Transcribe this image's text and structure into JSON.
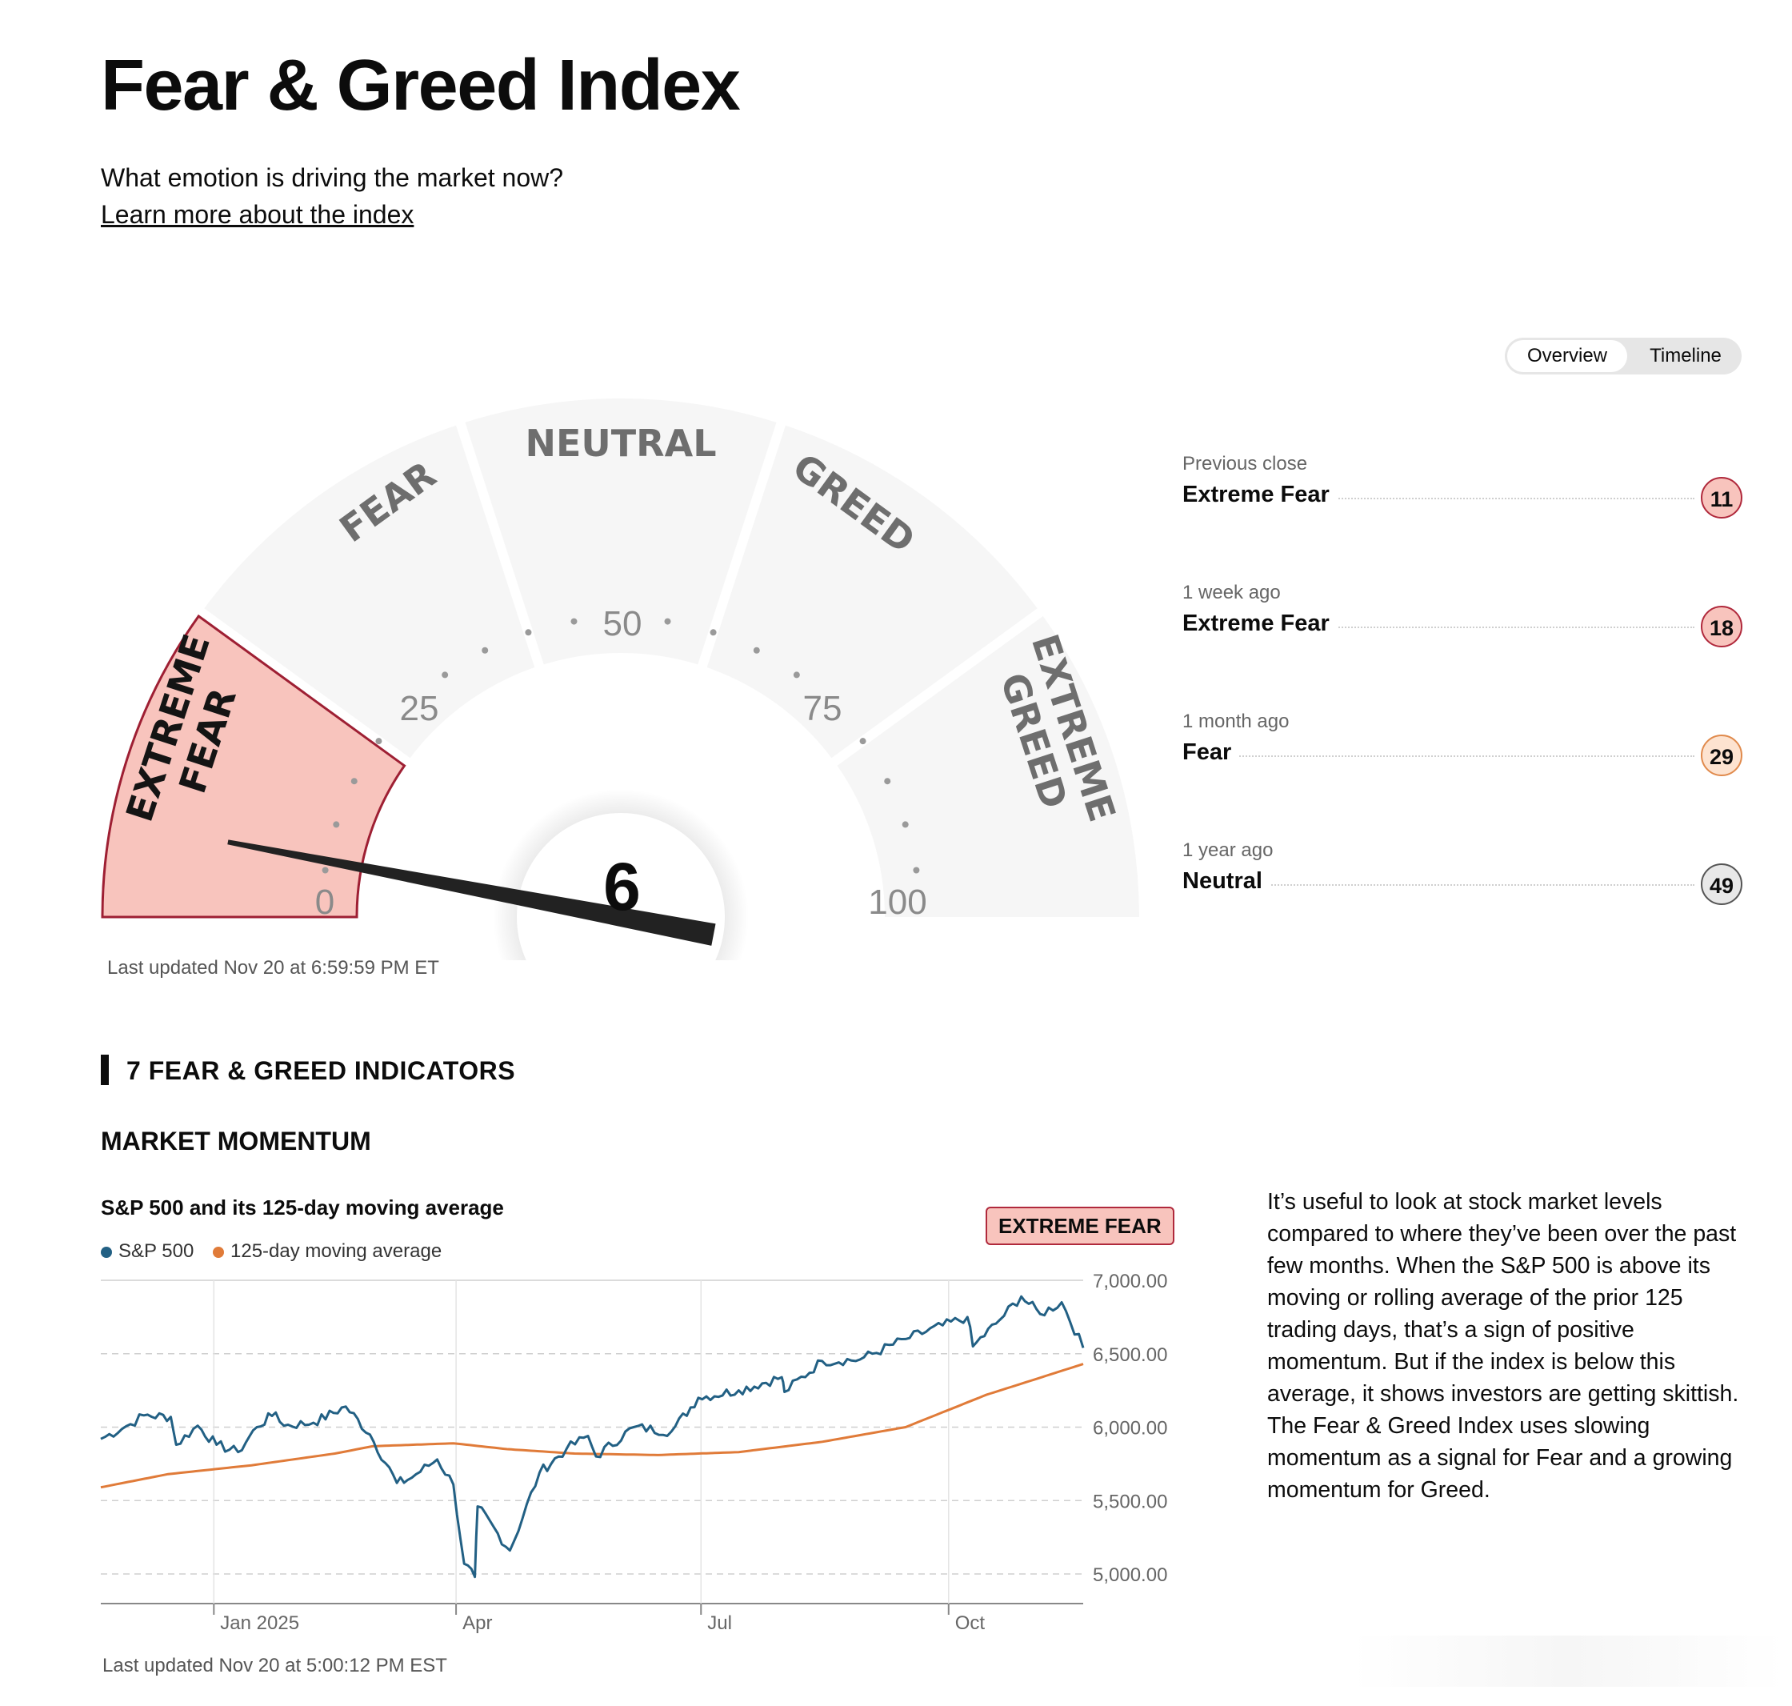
{
  "header": {
    "title": "Fear & Greed Index",
    "subtitle": "What emotion is driving the market now?",
    "learn_more": "Learn more about the index"
  },
  "tabs": {
    "overview": "Overview",
    "timeline": "Timeline",
    "active": "Overview"
  },
  "gauge": {
    "value": 6,
    "value_text": "6",
    "segments": [
      "EXTREME FEAR",
      "FEAR",
      "NEUTRAL",
      "GREED",
      "EXTREME GREED"
    ],
    "seg_extreme_fear_1": "EXTREME",
    "seg_extreme_fear_2": "FEAR",
    "seg_fear": "FEAR",
    "seg_neutral": "NEUTRAL",
    "seg_greed": "GREED",
    "seg_extreme_greed_1": "EXTREME",
    "seg_extreme_greed_2": "GREED",
    "tick_0": "0",
    "tick_25": "25",
    "tick_50": "50",
    "tick_75": "75",
    "tick_100": "100",
    "last_updated": "Last updated Nov 20 at 6:59:59 PM ET",
    "active_fill": "#f8c4bd",
    "active_stroke": "#9e1f33",
    "inactive_fill": "#f6f6f6"
  },
  "history": [
    {
      "label": "Previous close",
      "rating": "Extreme Fear",
      "value": "11",
      "bg": "#f8c4bd",
      "border": "#b0293c"
    },
    {
      "label": "1 week ago",
      "rating": "Extreme Fear",
      "value": "18",
      "bg": "#f8c4bd",
      "border": "#b0293c"
    },
    {
      "label": "1 month ago",
      "rating": "Fear",
      "value": "29",
      "bg": "#fde3d0",
      "border": "#e08a4c"
    },
    {
      "label": "1 year ago",
      "rating": "Neutral",
      "value": "49",
      "bg": "#e8e8e8",
      "border": "#555555"
    }
  ],
  "indicators": {
    "section_title": "7 FEAR & GREED INDICATORS",
    "market_momentum": {
      "title": "MARKET MOMENTUM",
      "chart_title": "S&P 500 and its 125-day moving average",
      "status": "EXTREME FEAR",
      "last_updated": "Last updated Nov 20 at 5:00:12 PM EST",
      "description": "It’s useful to look at stock market levels compared to where they’ve been over the past few months. When the S&P 500 is above its moving or rolling average of the prior 125 trading days, that’s a sign of positive momentum. But if the index is below this average, it shows investors are getting skittish. The Fear & Greed Index uses slowing momentum as a signal for Fear and a growing momentum for Greed."
    }
  },
  "chart_data": {
    "type": "line",
    "title": "S&P 500 and its 125-day moving average",
    "xlabel": "",
    "ylabel": "",
    "ylim": [
      4800,
      7000
    ],
    "y_ticks": [
      5000,
      5500,
      6000,
      6500,
      7000
    ],
    "y_tick_labels": [
      "5,000.00",
      "5,500.00",
      "6,000.00",
      "6,500.00",
      "7,000.00"
    ],
    "x_range": [
      "2024-11-20",
      "2025-11-20"
    ],
    "x_ticks": [
      "Jan 2025",
      "Apr",
      "Jul",
      "Oct"
    ],
    "grid": true,
    "legend": "top-left",
    "series": [
      {
        "name": "S&P 500",
        "color": "#226084",
        "points": [
          [
            "2024-11-20",
            5920
          ],
          [
            "2024-12-01",
            6020
          ],
          [
            "2024-12-06",
            6080
          ],
          [
            "2024-12-16",
            6070
          ],
          [
            "2024-12-18",
            5880
          ],
          [
            "2024-12-26",
            6010
          ],
          [
            "2025-01-02",
            5880
          ],
          [
            "2025-01-10",
            5830
          ],
          [
            "2025-01-17",
            6000
          ],
          [
            "2025-01-24",
            6100
          ],
          [
            "2025-01-27",
            6010
          ],
          [
            "2025-02-07",
            6030
          ],
          [
            "2025-02-19",
            6140
          ],
          [
            "2025-02-28",
            5950
          ],
          [
            "2025-03-10",
            5620
          ],
          [
            "2025-03-14",
            5640
          ],
          [
            "2025-03-25",
            5780
          ],
          [
            "2025-03-31",
            5610
          ],
          [
            "2025-04-04",
            5070
          ],
          [
            "2025-04-08",
            4980
          ],
          [
            "2025-04-09",
            5460
          ],
          [
            "2025-04-21",
            5160
          ],
          [
            "2025-05-02",
            5690
          ],
          [
            "2025-05-12",
            5850
          ],
          [
            "2025-05-20",
            5940
          ],
          [
            "2025-05-23",
            5800
          ],
          [
            "2025-06-06",
            6000
          ],
          [
            "2025-06-20",
            5970
          ],
          [
            "2025-06-30",
            6200
          ],
          [
            "2025-07-15",
            6250
          ],
          [
            "2025-07-31",
            6340
          ],
          [
            "2025-08-01",
            6240
          ],
          [
            "2025-08-15",
            6450
          ],
          [
            "2025-08-29",
            6460
          ],
          [
            "2025-09-15",
            6600
          ],
          [
            "2025-10-08",
            6750
          ],
          [
            "2025-10-10",
            6550
          ],
          [
            "2025-10-20",
            6730
          ],
          [
            "2025-10-28",
            6890
          ],
          [
            "2025-11-04",
            6770
          ],
          [
            "2025-11-12",
            6850
          ],
          [
            "2025-11-20",
            6540
          ]
        ]
      },
      {
        "name": "125-day moving average",
        "color": "#e07b39",
        "points": [
          [
            "2024-11-20",
            5590
          ],
          [
            "2024-12-15",
            5680
          ],
          [
            "2025-01-15",
            5740
          ],
          [
            "2025-02-15",
            5820
          ],
          [
            "2025-03-01",
            5870
          ],
          [
            "2025-03-31",
            5890
          ],
          [
            "2025-04-20",
            5850
          ],
          [
            "2025-05-15",
            5820
          ],
          [
            "2025-06-15",
            5810
          ],
          [
            "2025-07-15",
            5830
          ],
          [
            "2025-08-15",
            5900
          ],
          [
            "2025-09-15",
            6000
          ],
          [
            "2025-10-15",
            6220
          ],
          [
            "2025-11-20",
            6430
          ]
        ]
      }
    ]
  }
}
